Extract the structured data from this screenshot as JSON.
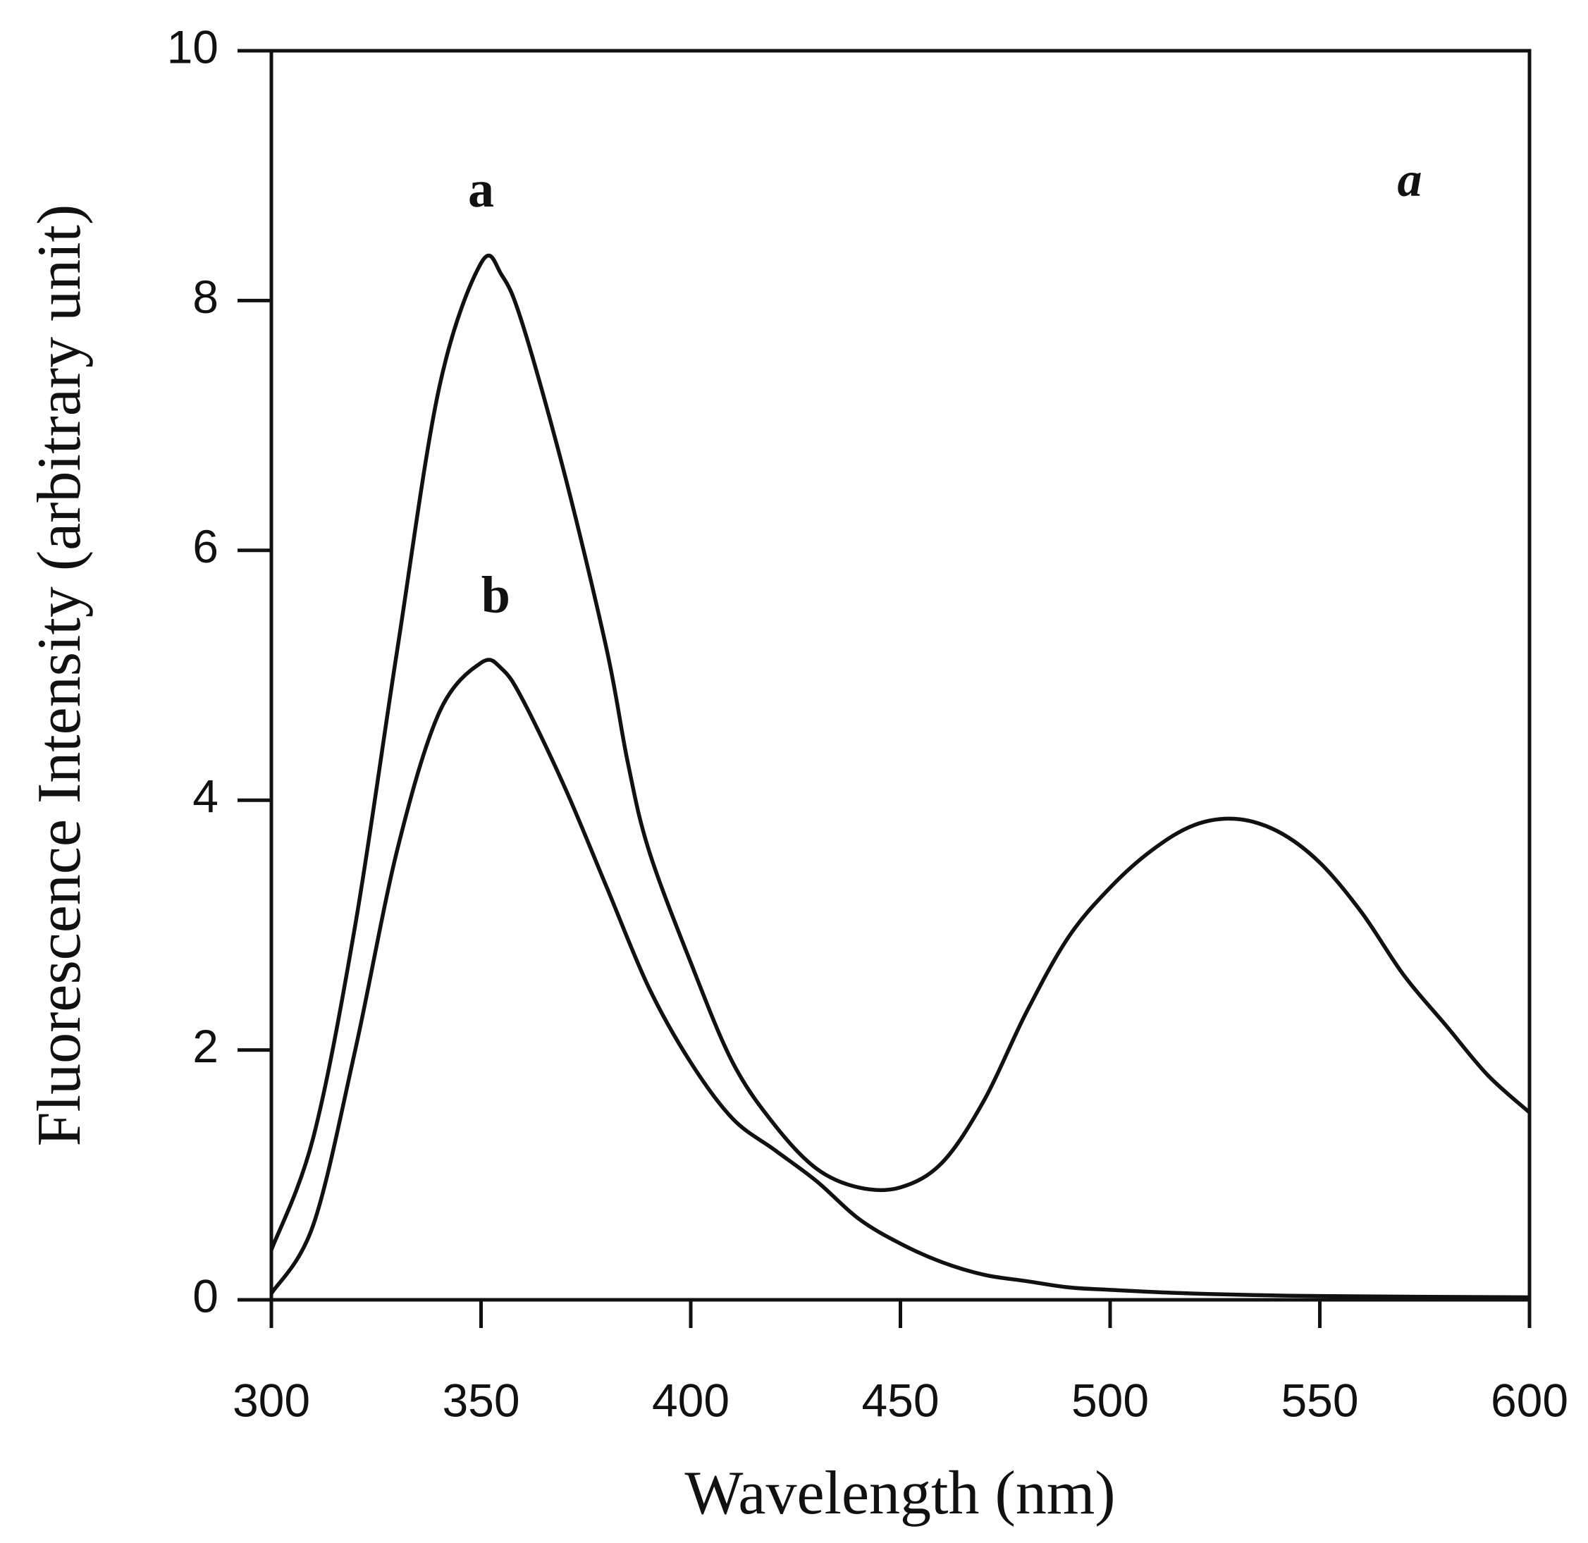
{
  "chart_data": {
    "type": "line",
    "x_label": "Wavelength (nm)",
    "y_label": "Fluorescence Intensity (arbitrary unit)",
    "annotation": "a",
    "xlim": [
      300,
      600
    ],
    "xticks": [
      300,
      350,
      400,
      450,
      500,
      550,
      600
    ],
    "ylim": [
      0,
      10
    ],
    "yticks": [
      0,
      2,
      4,
      6,
      8,
      10
    ],
    "series": [
      {
        "name": "a",
        "color": "#111111",
        "x": [
          300,
          310,
          320,
          330,
          340,
          350,
          355,
          360,
          370,
          380,
          385,
          390,
          400,
          410,
          420,
          430,
          440,
          450,
          460,
          470,
          480,
          490,
          500,
          510,
          520,
          530,
          540,
          550,
          560,
          570,
          580,
          590,
          600
        ],
        "values": [
          0.4,
          1.3,
          3.0,
          5.2,
          7.3,
          8.3,
          8.2,
          7.8,
          6.6,
          5.2,
          4.3,
          3.6,
          2.7,
          1.9,
          1.4,
          1.05,
          0.9,
          0.9,
          1.1,
          1.6,
          2.3,
          2.9,
          3.3,
          3.6,
          3.8,
          3.85,
          3.75,
          3.5,
          3.1,
          2.6,
          2.2,
          1.8,
          1.5
        ]
      },
      {
        "name": "b",
        "color": "#111111",
        "x": [
          300,
          310,
          320,
          330,
          340,
          350,
          355,
          360,
          370,
          380,
          390,
          400,
          410,
          420,
          430,
          440,
          450,
          460,
          470,
          480,
          490,
          500,
          520,
          550,
          600
        ],
        "values": [
          0.05,
          0.6,
          2.0,
          3.6,
          4.7,
          5.1,
          5.05,
          4.8,
          4.1,
          3.3,
          2.5,
          1.9,
          1.45,
          1.2,
          0.95,
          0.65,
          0.45,
          0.3,
          0.2,
          0.15,
          0.1,
          0.08,
          0.05,
          0.03,
          0.02
        ]
      }
    ]
  }
}
